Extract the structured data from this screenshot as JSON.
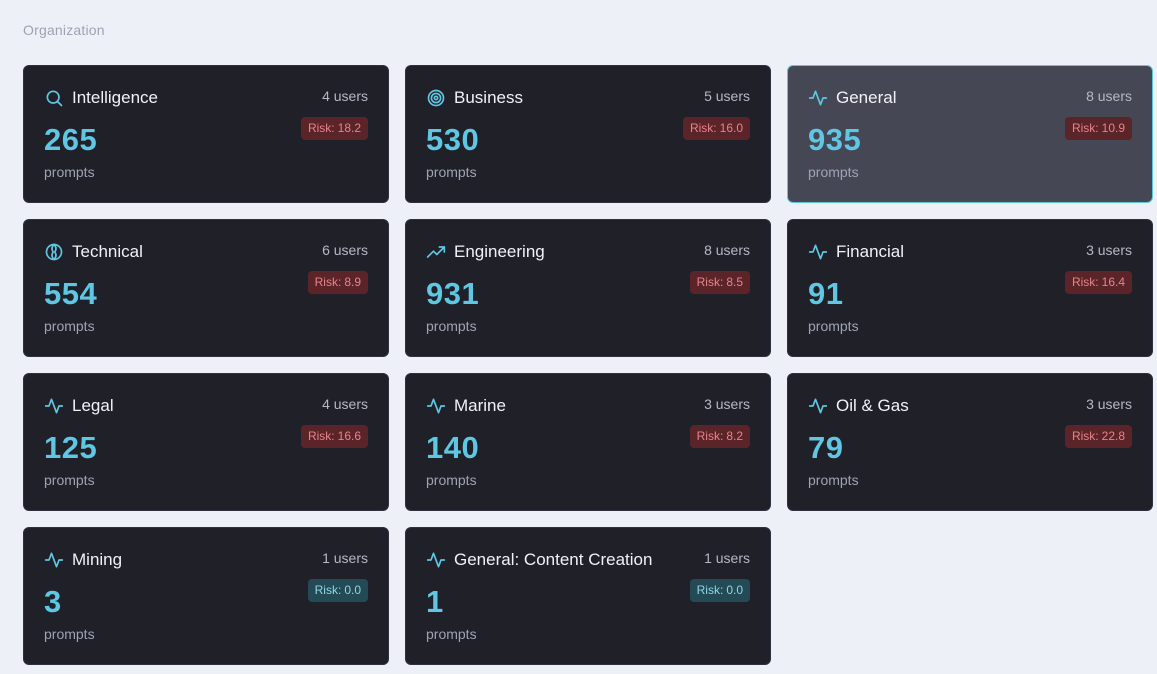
{
  "section_label": "Organization",
  "colors": {
    "accent": "#5fc7e3",
    "risk_high_bg": "#5b2428",
    "risk_low_bg": "#234a55"
  },
  "cards": [
    {
      "title": "Intelligence",
      "icon": "search-icon",
      "users": "4 users",
      "count": "265",
      "unit": "prompts",
      "risk_label": "Risk:",
      "risk_value": "18.2",
      "risk_level": "high",
      "active": false
    },
    {
      "title": "Business",
      "icon": "target-icon",
      "users": "5 users",
      "count": "530",
      "unit": "prompts",
      "risk_label": "Risk:",
      "risk_value": "16.0",
      "risk_level": "high",
      "active": false
    },
    {
      "title": "General",
      "icon": "activity-icon",
      "users": "8 users",
      "count": "935",
      "unit": "prompts",
      "risk_label": "Risk:",
      "risk_value": "10.9",
      "risk_level": "high",
      "active": true
    },
    {
      "title": "Technical",
      "icon": "brain-icon",
      "users": "6 users",
      "count": "554",
      "unit": "prompts",
      "risk_label": "Risk:",
      "risk_value": "8.9",
      "risk_level": "high",
      "active": false
    },
    {
      "title": "Engineering",
      "icon": "trending-up-icon",
      "users": "8 users",
      "count": "931",
      "unit": "prompts",
      "risk_label": "Risk:",
      "risk_value": "8.5",
      "risk_level": "high",
      "active": false
    },
    {
      "title": "Financial",
      "icon": "activity-icon",
      "users": "3 users",
      "count": "91",
      "unit": "prompts",
      "risk_label": "Risk:",
      "risk_value": "16.4",
      "risk_level": "high",
      "active": false
    },
    {
      "title": "Legal",
      "icon": "activity-icon",
      "users": "4 users",
      "count": "125",
      "unit": "prompts",
      "risk_label": "Risk:",
      "risk_value": "16.6",
      "risk_level": "high",
      "active": false
    },
    {
      "title": "Marine",
      "icon": "activity-icon",
      "users": "3 users",
      "count": "140",
      "unit": "prompts",
      "risk_label": "Risk:",
      "risk_value": "8.2",
      "risk_level": "high",
      "active": false
    },
    {
      "title": "Oil & Gas",
      "icon": "activity-icon",
      "users": "3 users",
      "count": "79",
      "unit": "prompts",
      "risk_label": "Risk:",
      "risk_value": "22.8",
      "risk_level": "high",
      "active": false
    },
    {
      "title": "Mining",
      "icon": "activity-icon",
      "users": "1 users",
      "count": "3",
      "unit": "prompts",
      "risk_label": "Risk:",
      "risk_value": "0.0",
      "risk_level": "low",
      "active": false
    },
    {
      "title": "General: Content Creation",
      "icon": "activity-icon",
      "users": "1 users",
      "count": "1",
      "unit": "prompts",
      "risk_label": "Risk:",
      "risk_value": "0.0",
      "risk_level": "low",
      "active": false
    }
  ]
}
